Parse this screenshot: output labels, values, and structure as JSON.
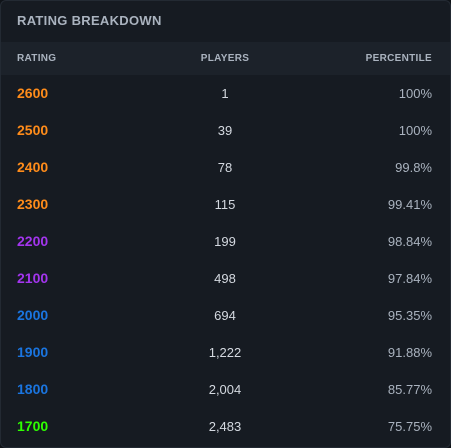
{
  "header": {
    "title": "RATING BREAKDOWN"
  },
  "table": {
    "columns": [
      "RATING",
      "PLAYERS",
      "PERCENTILE"
    ],
    "rows": [
      [
        "2600",
        "1",
        "100%"
      ],
      [
        "2500",
        "39",
        "100%"
      ],
      [
        "2400",
        "78",
        "99.8%"
      ],
      [
        "2300",
        "115",
        "99.41%"
      ],
      [
        "2200",
        "199",
        "98.84%"
      ],
      [
        "2100",
        "498",
        "97.84%"
      ],
      [
        "2000",
        "694",
        "95.35%"
      ],
      [
        "1900",
        "1,222",
        "91.88%"
      ],
      [
        "1800",
        "2,004",
        "85.77%"
      ],
      [
        "1700",
        "2,483",
        "75.75%"
      ]
    ],
    "row_colors": [
      "#ff8c1a",
      "#ff8c1a",
      "#ff8c1a",
      "#ff8c1a",
      "#a335ee",
      "#a335ee",
      "#1a75e0",
      "#1a75e0",
      "#1a75e0",
      "#2eff00"
    ]
  }
}
